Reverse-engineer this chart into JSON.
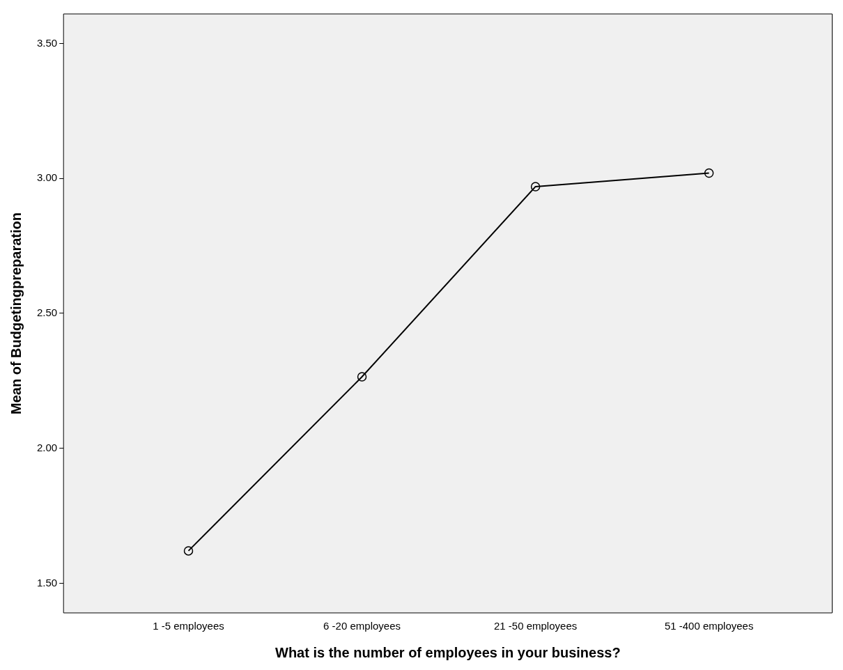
{
  "chart_data": {
    "type": "line",
    "xlabel": "What is the number of employees in your business?",
    "ylabel": "Mean of Budgetingpreparation",
    "categories": [
      "1 -5 employees",
      "6 -20 employees",
      "21 -50 employees",
      "51 -400 employees"
    ],
    "series": [
      {
        "color": "#000000",
        "values": [
          1.62,
          2.265,
          2.97,
          3.02
        ]
      }
    ],
    "ylim": [
      1.39,
      3.61
    ],
    "yticks": [
      {
        "value": 1.5,
        "label": "1.50"
      },
      {
        "value": 2,
        "label": "2.00"
      },
      {
        "value": 2.5,
        "label": "2.50"
      },
      {
        "value": 3,
        "label": "3.00"
      },
      {
        "value": 3.5,
        "label": "3.50"
      }
    ],
    "marker": "circle",
    "line_style": "solid",
    "grid": false,
    "legend": false
  }
}
